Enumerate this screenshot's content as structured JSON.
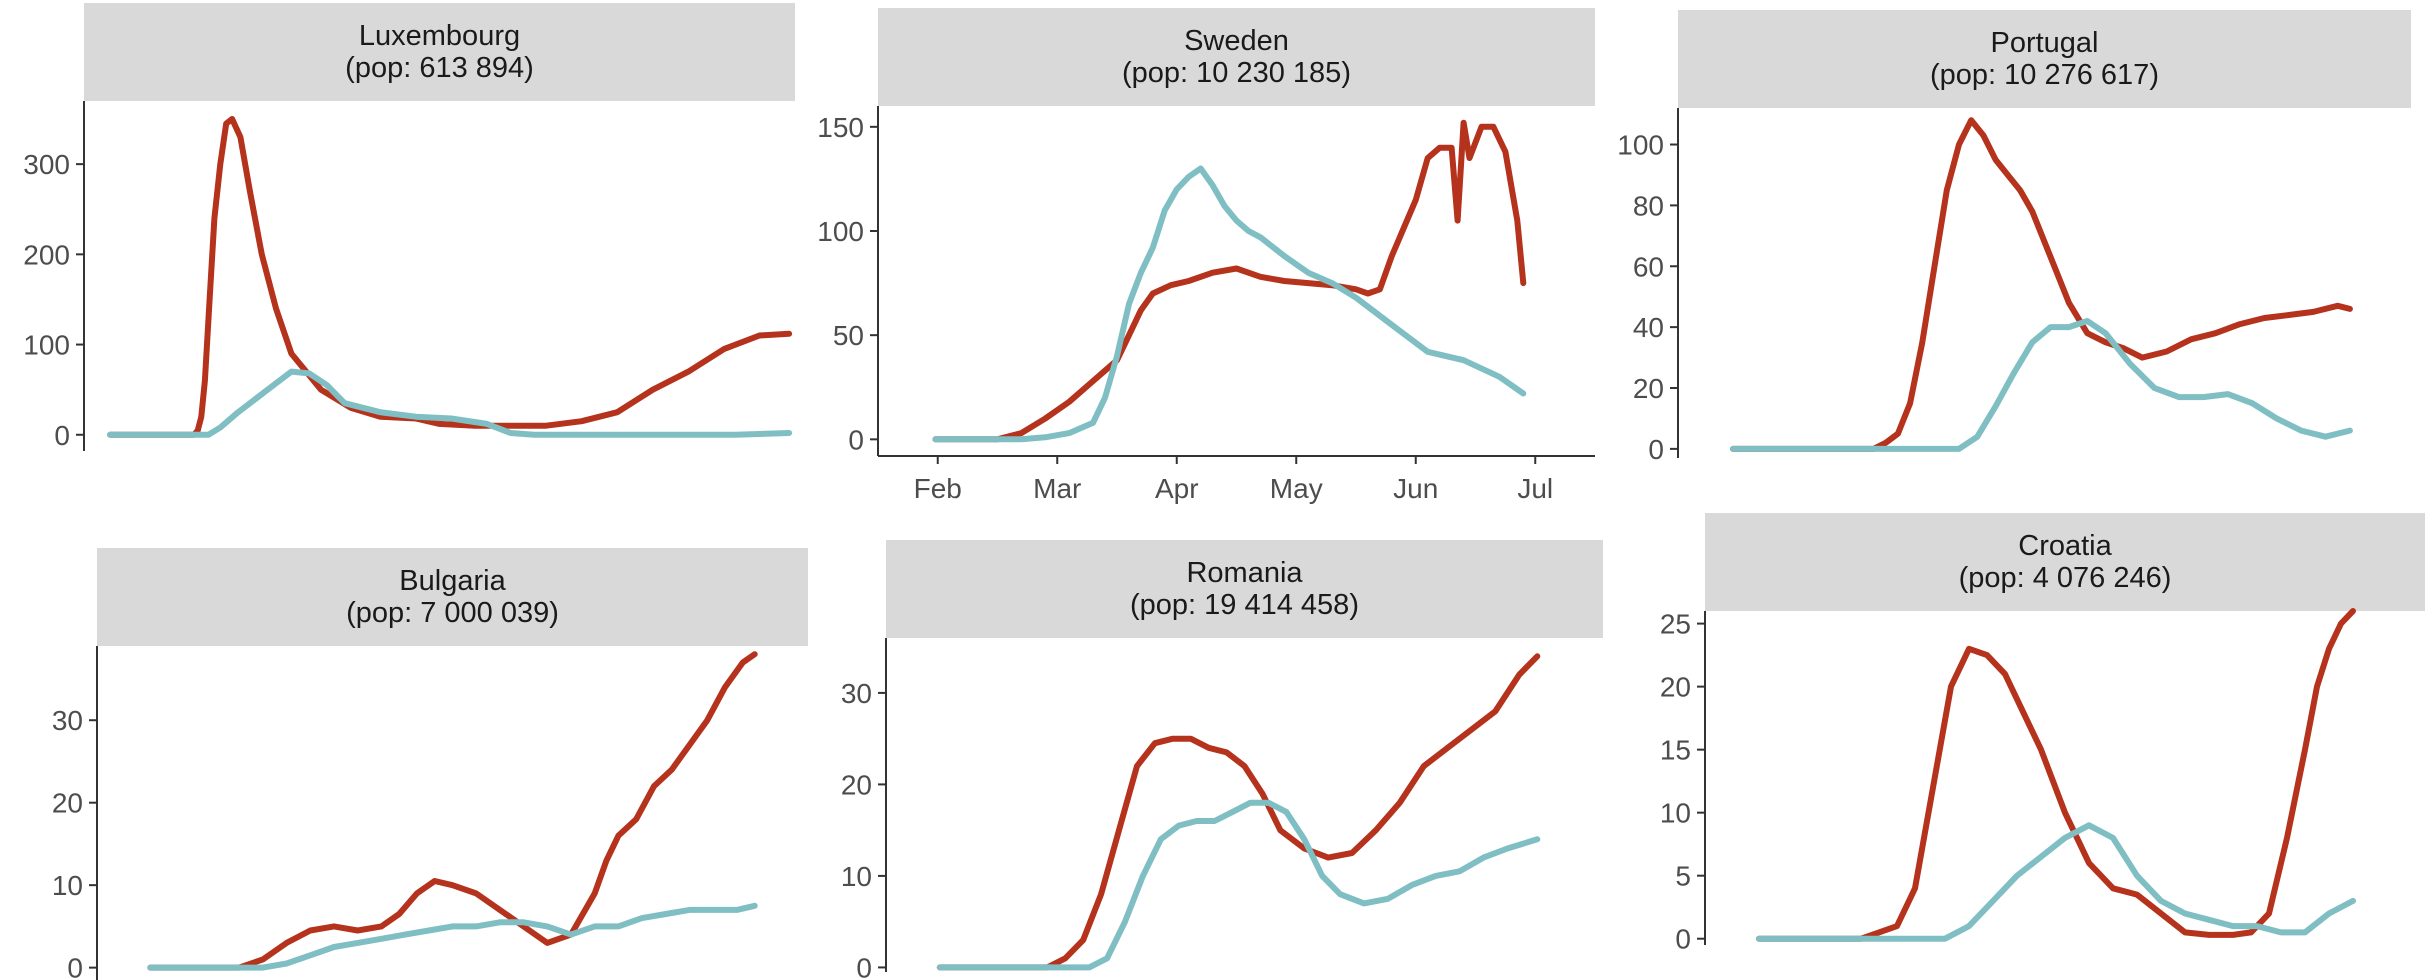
{
  "colors": {
    "series_red": "#b5321c",
    "series_teal": "#7fbfc4",
    "strip_bg": "#d9d9d9",
    "axis": "#333333"
  },
  "chart_data": [
    {
      "type": "line",
      "title": "Luxembourg",
      "subtitle": "(pop: 613 894)",
      "y_ticks": [
        0,
        100,
        200,
        300
      ],
      "ylim": [
        -18,
        370
      ],
      "x_months": [],
      "series": [
        {
          "color": "red",
          "x": [
            0.22,
            0.93,
            0.96,
            0.99,
            1.02,
            1.06,
            1.1,
            1.15,
            1.2,
            1.25,
            1.32,
            1.4,
            1.5,
            1.62,
            1.75,
            2.0,
            2.25,
            2.5,
            2.8,
            3.0,
            3.3,
            3.6,
            3.9,
            4.2,
            4.5,
            4.8,
            5.1,
            5.4,
            5.7,
            5.95
          ],
          "y": [
            0,
            0,
            5,
            20,
            60,
            150,
            240,
            300,
            345,
            350,
            330,
            270,
            200,
            140,
            90,
            50,
            30,
            20,
            18,
            12,
            10,
            10,
            10,
            15,
            25,
            50,
            70,
            95,
            110,
            112
          ]
        },
        {
          "color": "teal",
          "x": [
            0.22,
            1.05,
            1.15,
            1.3,
            1.45,
            1.6,
            1.75,
            1.9,
            2.05,
            2.2,
            2.5,
            2.8,
            3.1,
            3.4,
            3.6,
            3.8,
            4.1,
            4.5,
            5.0,
            5.5,
            5.95
          ],
          "y": [
            0,
            0,
            8,
            25,
            40,
            55,
            70,
            68,
            55,
            35,
            25,
            20,
            18,
            12,
            2,
            0,
            0,
            0,
            0,
            0,
            2
          ]
        }
      ]
    },
    {
      "type": "line",
      "title": "Sweden",
      "subtitle": "(pop: 10 230 185)",
      "y_ticks": [
        0,
        50,
        100,
        150
      ],
      "ylim": [
        -8,
        160
      ],
      "x_months": [
        "Feb",
        "Mar",
        "Apr",
        "May",
        "Jun",
        "Jul"
      ],
      "series": [
        {
          "color": "red",
          "x": [
            0.48,
            1.0,
            1.2,
            1.4,
            1.6,
            1.8,
            2.0,
            2.1,
            2.2,
            2.3,
            2.45,
            2.6,
            2.8,
            3.0,
            3.2,
            3.4,
            3.6,
            3.8,
            4.0,
            4.1,
            4.2,
            4.3,
            4.5,
            4.6,
            4.7,
            4.8,
            4.85,
            4.9,
            4.95,
            5.05,
            5.15,
            5.25,
            5.35,
            5.4
          ],
          "y": [
            0,
            0,
            3,
            10,
            18,
            28,
            38,
            50,
            62,
            70,
            74,
            76,
            80,
            82,
            78,
            76,
            75,
            74,
            72,
            70,
            72,
            88,
            115,
            135,
            140,
            140,
            105,
            152,
            135,
            150,
            150,
            138,
            105,
            75
          ]
        },
        {
          "color": "teal",
          "x": [
            0.48,
            1.2,
            1.4,
            1.6,
            1.8,
            1.9,
            2.0,
            2.1,
            2.2,
            2.3,
            2.4,
            2.5,
            2.6,
            2.7,
            2.8,
            2.9,
            3.0,
            3.1,
            3.2,
            3.4,
            3.6,
            3.8,
            4.0,
            4.3,
            4.6,
            4.9,
            5.2,
            5.4
          ],
          "y": [
            0,
            0,
            1,
            3,
            8,
            20,
            40,
            65,
            80,
            92,
            110,
            120,
            126,
            130,
            122,
            112,
            105,
            100,
            97,
            88,
            80,
            75,
            68,
            55,
            42,
            38,
            30,
            22
          ]
        }
      ]
    },
    {
      "type": "line",
      "title": "Portugal",
      "subtitle": "(pop: 10 276 617)",
      "y_ticks": [
        0,
        20,
        40,
        60,
        80,
        100
      ],
      "ylim": [
        -3,
        112
      ],
      "x_months": [],
      "series": [
        {
          "color": "red",
          "x": [
            0.45,
            1.6,
            1.7,
            1.8,
            1.9,
            2.0,
            2.1,
            2.2,
            2.3,
            2.4,
            2.5,
            2.6,
            2.7,
            2.8,
            2.9,
            3.0,
            3.1,
            3.2,
            3.35,
            3.5,
            3.65,
            3.8,
            4.0,
            4.2,
            4.4,
            4.6,
            4.8,
            5.0,
            5.2,
            5.4,
            5.5
          ],
          "y": [
            0,
            0,
            2,
            5,
            15,
            35,
            60,
            85,
            100,
            108,
            103,
            95,
            90,
            85,
            78,
            68,
            58,
            48,
            38,
            35,
            33,
            30,
            32,
            36,
            38,
            41,
            43,
            44,
            45,
            47,
            46
          ]
        },
        {
          "color": "teal",
          "x": [
            0.45,
            2.3,
            2.45,
            2.6,
            2.75,
            2.9,
            3.05,
            3.2,
            3.35,
            3.5,
            3.7,
            3.9,
            4.1,
            4.3,
            4.5,
            4.7,
            4.9,
            5.1,
            5.3,
            5.5
          ],
          "y": [
            0,
            0,
            4,
            14,
            25,
            35,
            40,
            40,
            42,
            38,
            28,
            20,
            17,
            17,
            18,
            15,
            10,
            6,
            4,
            6
          ]
        }
      ]
    },
    {
      "type": "line",
      "title": "Bulgaria",
      "subtitle": "(pop: 7 000 039)",
      "y_ticks": [
        0,
        10,
        20,
        30
      ],
      "ylim": [
        -1.5,
        39
      ],
      "x_months": [],
      "series": [
        {
          "color": "red",
          "x": [
            0.45,
            1.2,
            1.4,
            1.6,
            1.8,
            2.0,
            2.2,
            2.4,
            2.55,
            2.7,
            2.85,
            3.0,
            3.2,
            3.4,
            3.6,
            3.8,
            4.0,
            4.2,
            4.3,
            4.4,
            4.55,
            4.7,
            4.85,
            5.0,
            5.15,
            5.3,
            5.45,
            5.55
          ],
          "y": [
            0,
            0,
            1,
            3,
            4.5,
            5,
            4.5,
            5,
            6.5,
            9,
            10.5,
            10,
            9,
            7,
            5,
            3,
            4,
            9,
            13,
            16,
            18,
            22,
            24,
            27,
            30,
            34,
            37,
            38
          ]
        },
        {
          "color": "teal",
          "x": [
            0.45,
            1.4,
            1.6,
            1.8,
            2.0,
            2.2,
            2.4,
            2.6,
            2.8,
            3.0,
            3.2,
            3.4,
            3.6,
            3.8,
            4.0,
            4.2,
            4.4,
            4.6,
            4.8,
            5.0,
            5.2,
            5.4,
            5.55
          ],
          "y": [
            0,
            0,
            0.5,
            1.5,
            2.5,
            3,
            3.5,
            4,
            4.5,
            5,
            5,
            5.5,
            5.5,
            5,
            4,
            5,
            5,
            6,
            6.5,
            7,
            7,
            7,
            7.5
          ]
        }
      ]
    },
    {
      "type": "line",
      "title": "Romania",
      "subtitle": "(pop: 19 414 458)",
      "y_ticks": [
        0,
        10,
        20,
        30
      ],
      "ylim": [
        -0.5,
        36
      ],
      "x_months": [],
      "series": [
        {
          "color": "red",
          "x": [
            0.45,
            1.35,
            1.5,
            1.65,
            1.8,
            1.95,
            2.1,
            2.25,
            2.4,
            2.55,
            2.7,
            2.85,
            3.0,
            3.15,
            3.3,
            3.5,
            3.7,
            3.9,
            4.1,
            4.3,
            4.5,
            4.7,
            4.9,
            5.1,
            5.3,
            5.45
          ],
          "y": [
            0,
            0,
            1,
            3,
            8,
            15,
            22,
            24.5,
            25,
            25,
            24,
            23.5,
            22,
            19,
            15,
            13,
            12,
            12.5,
            15,
            18,
            22,
            24,
            26,
            28,
            32,
            34
          ]
        },
        {
          "color": "teal",
          "x": [
            0.45,
            1.7,
            1.85,
            2.0,
            2.15,
            2.3,
            2.45,
            2.6,
            2.75,
            2.9,
            3.05,
            3.2,
            3.35,
            3.5,
            3.65,
            3.8,
            4.0,
            4.2,
            4.4,
            4.6,
            4.8,
            5.0,
            5.2,
            5.45
          ],
          "y": [
            0,
            0,
            1,
            5,
            10,
            14,
            15.5,
            16,
            16,
            17,
            18,
            18,
            17,
            14,
            10,
            8,
            7,
            7.5,
            9,
            10,
            10.5,
            12,
            13,
            14
          ]
        }
      ]
    },
    {
      "type": "line",
      "title": "Croatia",
      "subtitle": "(pop: 4 076 246)",
      "y_ticks": [
        0,
        5,
        10,
        15,
        20,
        25
      ],
      "y_tick_labels": [
        "0",
        "5",
        "10",
        "15",
        "20",
        "25"
      ],
      "ylim": [
        -0.5,
        26
      ],
      "x_months": [],
      "series": [
        {
          "color": "red",
          "x": [
            0.45,
            1.3,
            1.45,
            1.6,
            1.75,
            1.9,
            2.05,
            2.2,
            2.35,
            2.5,
            2.65,
            2.8,
            3.0,
            3.2,
            3.4,
            3.6,
            3.8,
            4.0,
            4.2,
            4.4,
            4.55,
            4.7,
            4.85,
            5.0,
            5.1,
            5.2,
            5.3,
            5.4
          ],
          "y": [
            0,
            0,
            0.5,
            1,
            4,
            12,
            20,
            23,
            22.5,
            21,
            18,
            15,
            10,
            6,
            4,
            3.5,
            2,
            0.5,
            0.3,
            0.3,
            0.5,
            2,
            8,
            15,
            20,
            23,
            25,
            26
          ]
        },
        {
          "color": "teal",
          "x": [
            0.45,
            2.0,
            2.2,
            2.4,
            2.6,
            2.8,
            3.0,
            3.2,
            3.4,
            3.6,
            3.8,
            4.0,
            4.2,
            4.4,
            4.6,
            4.8,
            5.0,
            5.2,
            5.4
          ],
          "y": [
            0,
            0,
            1,
            3,
            5,
            6.5,
            8,
            9,
            8,
            5,
            3,
            2,
            1.5,
            1,
            1,
            0.5,
            0.5,
            2,
            3
          ]
        }
      ]
    }
  ]
}
